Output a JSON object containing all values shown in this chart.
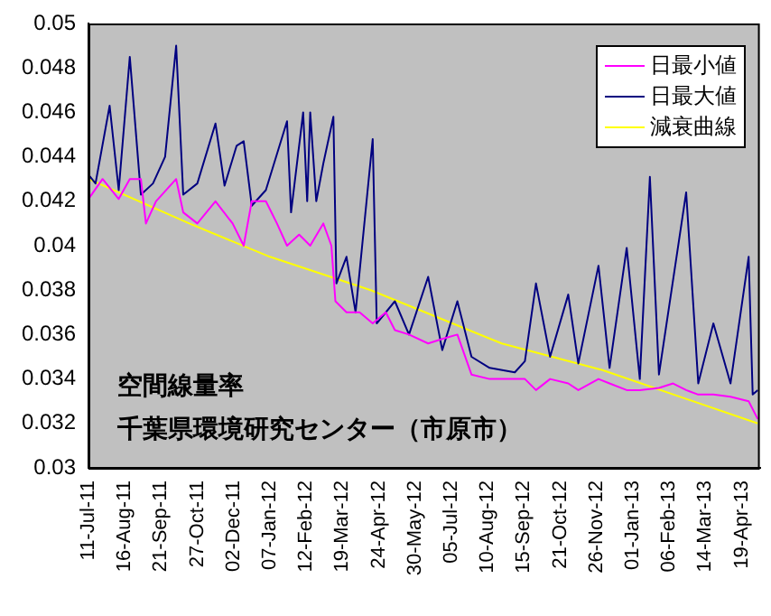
{
  "chart_data": {
    "type": "line",
    "annotations": [
      "空間線量率",
      "千葉県環境研究センター（市原市）"
    ],
    "xlim": [
      "2011-07-11",
      "2013-05-07"
    ],
    "xticks": [
      {
        "value": "2011-07-11",
        "label": "11-Jul-11"
      },
      {
        "value": "2011-08-16",
        "label": "16-Aug-11"
      },
      {
        "value": "2011-09-21",
        "label": "21-Sep-11"
      },
      {
        "value": "2011-10-27",
        "label": "27-Oct-11"
      },
      {
        "value": "2011-12-02",
        "label": "02-Dec-11"
      },
      {
        "value": "2012-01-07",
        "label": "07-Jan-12"
      },
      {
        "value": "2012-02-12",
        "label": "12-Feb-12"
      },
      {
        "value": "2012-03-19",
        "label": "19-Mar-12"
      },
      {
        "value": "2012-04-24",
        "label": "24-Apr-12"
      },
      {
        "value": "2012-05-30",
        "label": "30-May-12"
      },
      {
        "value": "2012-07-05",
        "label": "05-Jul-12"
      },
      {
        "value": "2012-08-10",
        "label": "10-Aug-12"
      },
      {
        "value": "2012-09-15",
        "label": "15-Sep-12"
      },
      {
        "value": "2012-10-21",
        "label": "21-Oct-12"
      },
      {
        "value": "2012-11-26",
        "label": "26-Nov-12"
      },
      {
        "value": "2013-01-01",
        "label": "01-Jan-13"
      },
      {
        "value": "2013-02-06",
        "label": "06-Feb-13"
      },
      {
        "value": "2013-03-14",
        "label": "14-Mar-13"
      },
      {
        "value": "2013-04-19",
        "label": "19-Apr-13"
      }
    ],
    "ylim": [
      0.03,
      0.05
    ],
    "yticks": [
      0.03,
      0.032,
      0.034,
      0.036,
      0.038,
      0.04,
      0.042,
      0.044,
      0.046,
      0.048,
      0.05
    ],
    "grid": false,
    "legend": "top right",
    "marker": "none",
    "series": [
      {
        "name": "日最小値",
        "color": "#ff00ff",
        "x": [
          "2011-07-11",
          "2011-07-25",
          "2011-08-10",
          "2011-08-21",
          "2011-09-01",
          "2011-09-06",
          "2011-09-16",
          "2011-10-06",
          "2011-10-13",
          "2011-10-27",
          "2011-11-14",
          "2011-12-01",
          "2011-12-12",
          "2011-12-20",
          "2012-01-03",
          "2012-01-14",
          "2012-01-24",
          "2012-02-05",
          "2012-02-16",
          "2012-02-29",
          "2012-03-08",
          "2012-03-12",
          "2012-03-23",
          "2012-04-05",
          "2012-04-18",
          "2012-05-01",
          "2012-05-10",
          "2012-05-24",
          "2012-06-12",
          "2012-06-26",
          "2012-07-11",
          "2012-07-25",
          "2012-08-12",
          "2012-09-06",
          "2012-09-16",
          "2012-09-27",
          "2012-10-11",
          "2012-10-29",
          "2012-11-08",
          "2012-11-28",
          "2012-12-09",
          "2012-12-26",
          "2013-01-08",
          "2013-01-27",
          "2013-02-10",
          "2013-02-23",
          "2013-03-07",
          "2013-03-22",
          "2013-04-08",
          "2013-04-26",
          "2013-05-05"
        ],
        "values": [
          0.0421,
          0.043,
          0.0421,
          0.043,
          0.043,
          0.041,
          0.042,
          0.043,
          0.0415,
          0.041,
          0.042,
          0.041,
          0.04,
          0.042,
          0.042,
          0.041,
          0.04,
          0.0405,
          0.04,
          0.041,
          0.04,
          0.0375,
          0.037,
          0.037,
          0.0365,
          0.037,
          0.0362,
          0.036,
          0.0356,
          0.0358,
          0.036,
          0.0342,
          0.034,
          0.034,
          0.034,
          0.0335,
          0.034,
          0.0338,
          0.0335,
          0.034,
          0.0338,
          0.0335,
          0.0335,
          0.0336,
          0.0338,
          0.0335,
          0.0333,
          0.0333,
          0.0332,
          0.033,
          0.0322
        ]
      },
      {
        "name": "日最大値",
        "color": "#000080",
        "x": [
          "2011-07-11",
          "2011-07-18",
          "2011-08-01",
          "2011-08-10",
          "2011-08-21",
          "2011-09-01",
          "2011-09-13",
          "2011-09-25",
          "2011-10-06",
          "2011-10-13",
          "2011-10-27",
          "2011-11-14",
          "2011-11-23",
          "2011-12-05",
          "2011-12-12",
          "2011-12-20",
          "2012-01-03",
          "2012-01-24",
          "2012-01-28",
          "2012-02-09",
          "2012-02-13",
          "2012-02-16",
          "2012-02-22",
          "2012-02-29",
          "2012-03-10",
          "2012-03-13",
          "2012-03-23",
          "2012-04-01",
          "2012-04-18",
          "2012-04-22",
          "2012-05-10",
          "2012-05-24",
          "2012-06-12",
          "2012-06-26",
          "2012-07-11",
          "2012-07-25",
          "2012-08-12",
          "2012-09-06",
          "2012-09-16",
          "2012-09-27",
          "2012-10-11",
          "2012-10-29",
          "2012-11-08",
          "2012-11-28",
          "2012-12-09",
          "2012-12-26",
          "2013-01-08",
          "2013-01-18",
          "2013-01-27",
          "2013-02-23",
          "2013-03-07",
          "2013-03-22",
          "2013-04-08",
          "2013-04-26",
          "2013-04-30",
          "2013-05-05"
        ],
        "values": [
          0.0432,
          0.0428,
          0.0463,
          0.0425,
          0.0485,
          0.0423,
          0.0428,
          0.044,
          0.049,
          0.0423,
          0.0428,
          0.0455,
          0.0427,
          0.0445,
          0.0447,
          0.0418,
          0.0425,
          0.0456,
          0.0415,
          0.046,
          0.042,
          0.046,
          0.042,
          0.0437,
          0.0458,
          0.0383,
          0.0395,
          0.037,
          0.0448,
          0.0365,
          0.0375,
          0.036,
          0.0386,
          0.0353,
          0.0375,
          0.035,
          0.0345,
          0.0343,
          0.0348,
          0.0383,
          0.035,
          0.0378,
          0.0347,
          0.0391,
          0.0345,
          0.0399,
          0.034,
          0.0431,
          0.0342,
          0.0424,
          0.0338,
          0.0365,
          0.0338,
          0.0395,
          0.0333,
          0.0335
        ]
      },
      {
        "name": "減衰曲線",
        "color": "#ffff00",
        "x": [
          "2011-07-11",
          "2011-10-19",
          "2012-01-07",
          "2012-04-16",
          "2012-08-24",
          "2012-12-02",
          "2013-05-05"
        ],
        "values": [
          0.043,
          0.041,
          0.0395,
          0.038,
          0.0356,
          0.0344,
          0.032
        ]
      }
    ]
  }
}
